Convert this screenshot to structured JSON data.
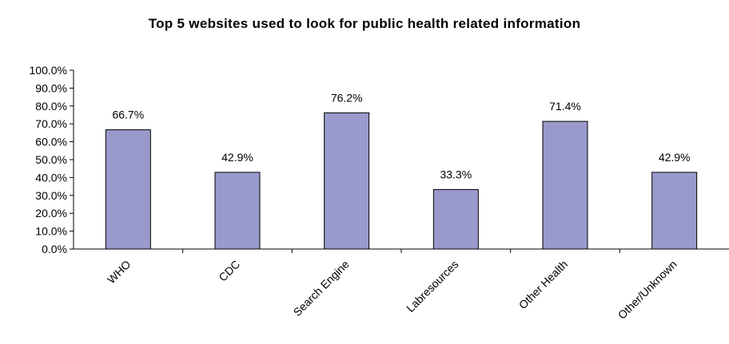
{
  "chart_data": {
    "type": "bar",
    "title": "Top 5 websites used to look for public health related information",
    "categories": [
      "WHO",
      "CDC",
      "Search Engine",
      "Labresources",
      "Other Health",
      "Other/Unknown"
    ],
    "values": [
      66.7,
      42.9,
      76.2,
      33.3,
      71.4,
      42.9
    ],
    "data_labels": [
      "66.7%",
      "42.9%",
      "76.2%",
      "33.3%",
      "71.4%",
      "42.9%"
    ],
    "ylim": [
      0,
      100
    ],
    "y_ticks": [
      {
        "value": 0,
        "label": "0.0%"
      },
      {
        "value": 10,
        "label": "10.0%"
      },
      {
        "value": 20,
        "label": "20.0%"
      },
      {
        "value": 30,
        "label": "30.0%"
      },
      {
        "value": 40,
        "label": "40.0%"
      },
      {
        "value": 50,
        "label": "50.0%"
      },
      {
        "value": 60,
        "label": "60.0%"
      },
      {
        "value": 70,
        "label": "70.0%"
      },
      {
        "value": 80,
        "label": "80.0%"
      },
      {
        "value": 90,
        "label": "90.0%"
      },
      {
        "value": 100,
        "label": "100.0%"
      }
    ],
    "xlabel": "",
    "ylabel": "",
    "grid": false,
    "legend": "none",
    "bar_color": "#9999cc",
    "bar_edge_color": "#000000"
  }
}
